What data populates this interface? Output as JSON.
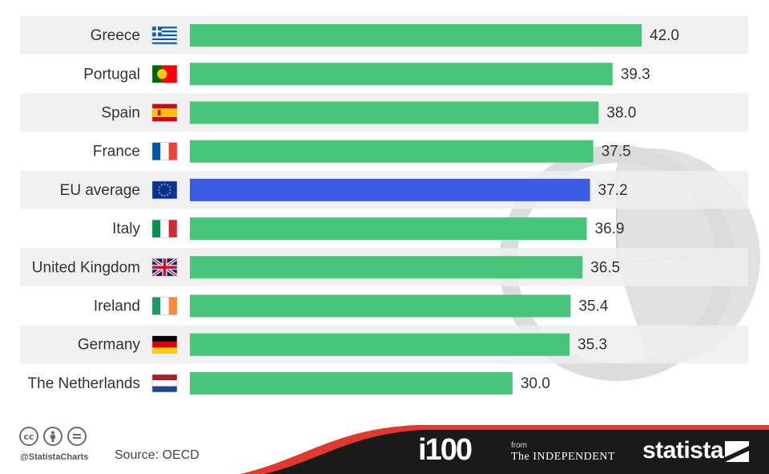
{
  "chart_data": {
    "type": "bar",
    "orientation": "horizontal",
    "categories": [
      "Greece",
      "Portugal",
      "Spain",
      "France",
      "EU average",
      "Italy",
      "United Kingdom",
      "Ireland",
      "Germany",
      "The Netherlands"
    ],
    "values": [
      42.0,
      39.3,
      38.0,
      37.5,
      37.2,
      36.9,
      36.5,
      35.4,
      35.3,
      30.0
    ],
    "value_labels": [
      "42.0",
      "39.3",
      "38.0",
      "37.5",
      "37.2",
      "36.9",
      "36.5",
      "35.4",
      "35.3",
      "30.0"
    ],
    "flag_icons": [
      "greece-flag-icon",
      "portugal-flag-icon",
      "spain-flag-icon",
      "france-flag-icon",
      "eu-flag-icon",
      "italy-flag-icon",
      "united-kingdom-flag-icon",
      "ireland-flag-icon",
      "germany-flag-icon",
      "netherlands-flag-icon"
    ],
    "highlight_category": "EU average",
    "colors": {
      "bar": "#47c57a",
      "highlight": "#3d5ce6",
      "row_band": "#efefef",
      "clock": "#dcdcdc"
    },
    "xlim": [
      0,
      42
    ],
    "grid": false,
    "legend": "none"
  },
  "footer": {
    "handle": "@StatistaCharts",
    "source": "Source: OECD",
    "license_icons": [
      "cc-icon",
      "attribution-icon",
      "no-derivatives-icon"
    ],
    "cc_text": "cc",
    "i100_logo": "i100",
    "from_text": "from",
    "independent_logo": "The INDEPENDENT",
    "statista_logo": "statista",
    "colors": {
      "band": "#1a1a1a",
      "accent": "#e03a2f"
    }
  }
}
